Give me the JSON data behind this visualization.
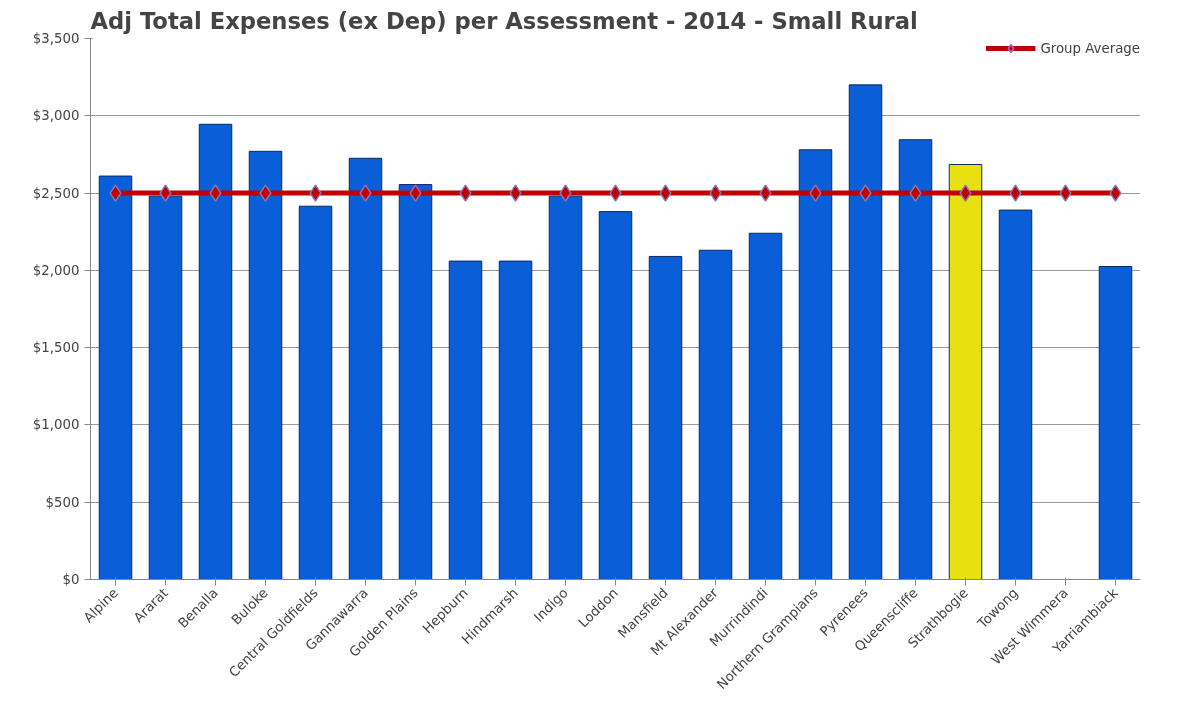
{
  "chart_data": {
    "type": "bar",
    "title": "Adj Total Expenses (ex Dep) per Assessment - 2014 - Small Rural",
    "categories": [
      "Alpine",
      "Ararat",
      "Benalla",
      "Buloke",
      "Central Goldfields",
      "Gannawarra",
      "Golden Plains",
      "Hepburn",
      "Hindmarsh",
      "Indigo",
      "Loddon",
      "Mansfield",
      "Mt Alexander",
      "Murrindindi",
      "Northern Grampians",
      "Pyrenees",
      "Queenscliffe",
      "Strathbogie",
      "Towong",
      "West Wimmera",
      "Yarriambiack"
    ],
    "series": [
      {
        "colors": [
          "#0a5fd8",
          "#0a5fd8",
          "#0a5fd8",
          "#0a5fd8",
          "#0a5fd8",
          "#0a5fd8",
          "#0a5fd8",
          "#0a5fd8",
          "#0a5fd8",
          "#0a5fd8",
          "#0a5fd8",
          "#0a5fd8",
          "#0a5fd8",
          "#0a5fd8",
          "#0a5fd8",
          "#0a5fd8",
          "#0a5fd8",
          "#e8e010",
          "#0a5fd8",
          "#0a5fd8",
          "#0a5fd8"
        ],
        "values": [
          2610,
          2480,
          2945,
          2770,
          2415,
          2725,
          2555,
          2060,
          2060,
          2480,
          2380,
          2090,
          2130,
          2240,
          2780,
          3200,
          2845,
          2685,
          2390,
          null,
          2025
        ]
      },
      {
        "type": "line",
        "name": "Group Average",
        "color": "#c00000",
        "marker": "diamond",
        "values": [
          2500,
          2500,
          2500,
          2500,
          2500,
          2500,
          2500,
          2500,
          2500,
          2500,
          2500,
          2500,
          2500,
          2500,
          2500,
          2500,
          2500,
          2500,
          2500,
          2500,
          2500
        ]
      }
    ],
    "ylim": [
      0,
      3500
    ],
    "yticks": [
      {
        "value": 0,
        "label": "$0"
      },
      {
        "value": 500,
        "label": "$500"
      },
      {
        "value": 1000,
        "label": "$1,000"
      },
      {
        "value": 1500,
        "label": "$1,500"
      },
      {
        "value": 2000,
        "label": "$2,000"
      },
      {
        "value": 2500,
        "label": "$2,500"
      },
      {
        "value": 3000,
        "label": "$3,000"
      },
      {
        "value": 3500,
        "label": "$3,500"
      }
    ],
    "grid": "y",
    "legend": "top right"
  }
}
